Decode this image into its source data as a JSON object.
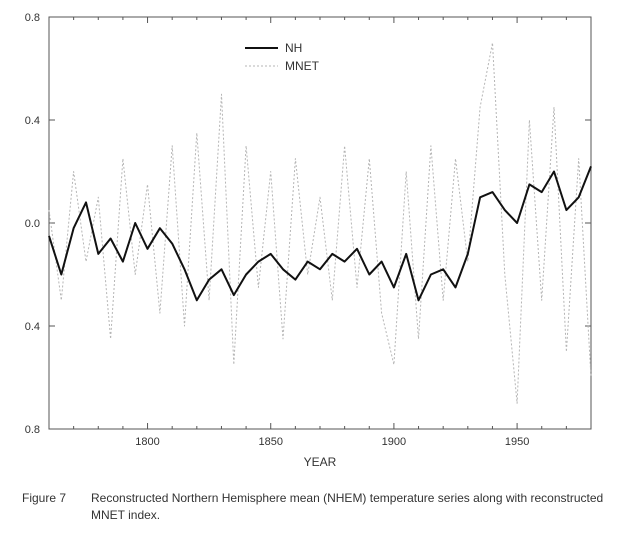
{
  "chart_data": {
    "type": "line",
    "xlabel": "YEAR",
    "ylabel": "",
    "xlim": [
      1760,
      1980
    ],
    "ylim": [
      -0.8,
      0.8
    ],
    "x_ticks": [
      1800,
      1850,
      1900,
      1950
    ],
    "y_tick_labels": [
      {
        "value": 0.8,
        "label": "0.8"
      },
      {
        "value": 0.4,
        "label": "0.4"
      },
      {
        "value": 0.0,
        "label": "0.0"
      },
      {
        "value": -0.4,
        "label": "0.4"
      },
      {
        "value": -0.8,
        "label": "0.8"
      }
    ],
    "legend": {
      "position": "top-center",
      "entries": [
        "NH",
        "MNET"
      ]
    },
    "series": [
      {
        "name": "NH",
        "style": "solid",
        "color": "#111111",
        "x": [
          1760,
          1765,
          1770,
          1775,
          1780,
          1785,
          1790,
          1795,
          1800,
          1805,
          1810,
          1815,
          1820,
          1825,
          1830,
          1835,
          1840,
          1845,
          1850,
          1855,
          1860,
          1865,
          1870,
          1875,
          1880,
          1885,
          1890,
          1895,
          1900,
          1905,
          1910,
          1915,
          1920,
          1925,
          1930,
          1935,
          1940,
          1945,
          1950,
          1955,
          1960,
          1965,
          1970,
          1975,
          1980
        ],
        "values": [
          -0.05,
          -0.2,
          -0.02,
          0.08,
          -0.12,
          -0.06,
          -0.15,
          0.0,
          -0.1,
          -0.02,
          -0.08,
          -0.18,
          -0.3,
          -0.22,
          -0.18,
          -0.28,
          -0.2,
          -0.15,
          -0.12,
          -0.18,
          -0.22,
          -0.15,
          -0.18,
          -0.12,
          -0.15,
          -0.1,
          -0.2,
          -0.15,
          -0.25,
          -0.12,
          -0.3,
          -0.2,
          -0.18,
          -0.25,
          -0.12,
          0.1,
          0.12,
          0.05,
          0.0,
          0.15,
          0.12,
          0.2,
          0.05,
          0.1,
          0.22
        ]
      },
      {
        "name": "MNET",
        "style": "dotted",
        "color": "#b5b5b5",
        "x": [
          1760,
          1765,
          1770,
          1775,
          1780,
          1785,
          1790,
          1795,
          1800,
          1805,
          1810,
          1815,
          1820,
          1825,
          1830,
          1835,
          1840,
          1845,
          1850,
          1855,
          1860,
          1865,
          1870,
          1875,
          1880,
          1885,
          1890,
          1895,
          1900,
          1905,
          1910,
          1915,
          1920,
          1925,
          1930,
          1935,
          1940,
          1945,
          1950,
          1955,
          1960,
          1965,
          1970,
          1975,
          1980
        ],
        "values": [
          0.05,
          -0.3,
          0.2,
          -0.15,
          0.1,
          -0.45,
          0.25,
          -0.2,
          0.15,
          -0.35,
          0.3,
          -0.4,
          0.35,
          -0.3,
          0.5,
          -0.55,
          0.3,
          -0.25,
          0.2,
          -0.45,
          0.25,
          -0.2,
          0.1,
          -0.3,
          0.3,
          -0.25,
          0.25,
          -0.35,
          -0.55,
          0.2,
          -0.45,
          0.3,
          -0.3,
          0.25,
          -0.15,
          0.45,
          0.7,
          -0.2,
          -0.7,
          0.4,
          -0.3,
          0.45,
          -0.5,
          0.25,
          -0.6
        ]
      }
    ]
  },
  "caption": {
    "label": "Figure 7",
    "text": "Reconstructed Northern Hemisphere mean (NHEM) temperature series along with reconstructed MNET index."
  }
}
